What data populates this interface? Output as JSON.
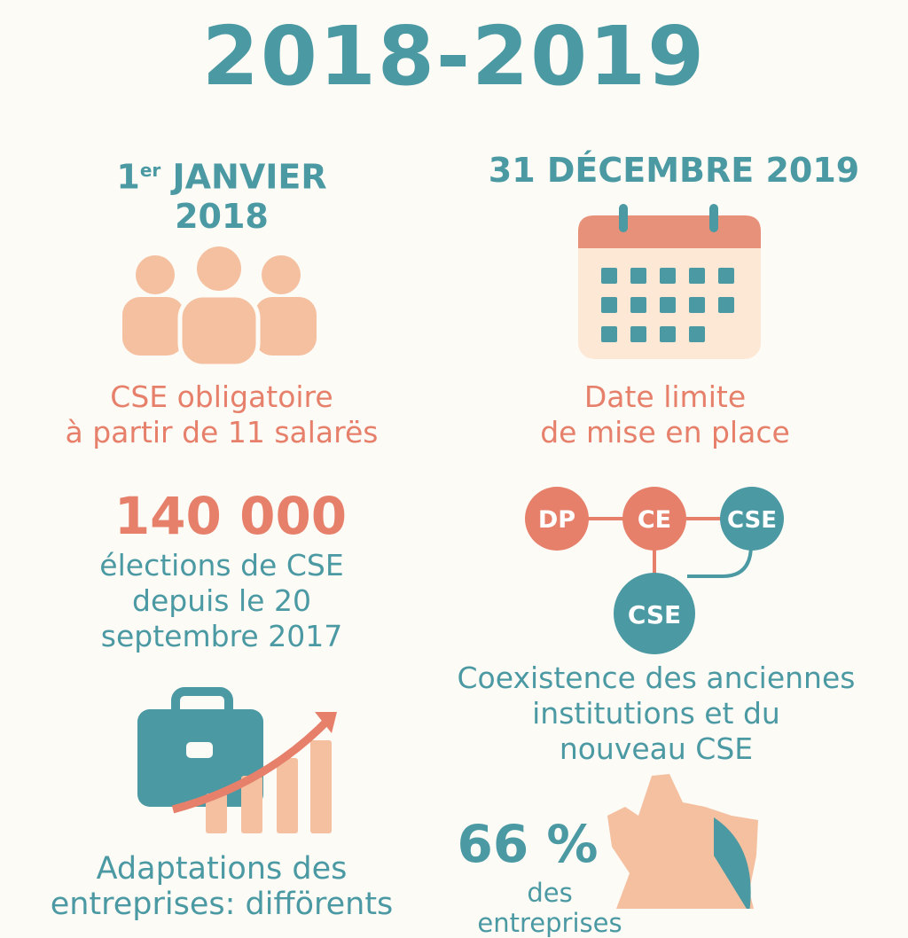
{
  "title": "2018-2019",
  "colors": {
    "teal": "#4a99a3",
    "coral": "#e6806b",
    "peach": "#f4c0a0",
    "background": "#fdfbf6"
  },
  "left": {
    "date_day": "1",
    "date_sup": "er",
    "date_month": "JANVIER",
    "date_year": "2018",
    "icon": "people-group-icon",
    "caption_line1": "CSE obligatoire",
    "caption_line2": "à partir de 11 salarës",
    "stat_value": "140 000",
    "stat_line1": "élections de CSE",
    "stat_line2": "depuis le 20",
    "stat_line3": "septembre 2017",
    "icon2": "briefcase-growth-icon",
    "adapt_line1": "Adaptations des",
    "adapt_line2": "entreprises: difförents"
  },
  "right": {
    "date": "31 DÉCEMBRE 2019",
    "icon": "calendar-icon",
    "caption_line1": "Date limite",
    "caption_line2": "de mise en place",
    "diagram": {
      "nodes": [
        "DP",
        "CE",
        "CSE",
        "CSE"
      ]
    },
    "coexist_line1": "Coexistence des anciennes",
    "coexist_line2": "institutions et du",
    "coexist_line3": "nouveau CSE",
    "icon2": "france-map-icon",
    "pct_value": "66 %",
    "pct_label": "des entreprises"
  }
}
